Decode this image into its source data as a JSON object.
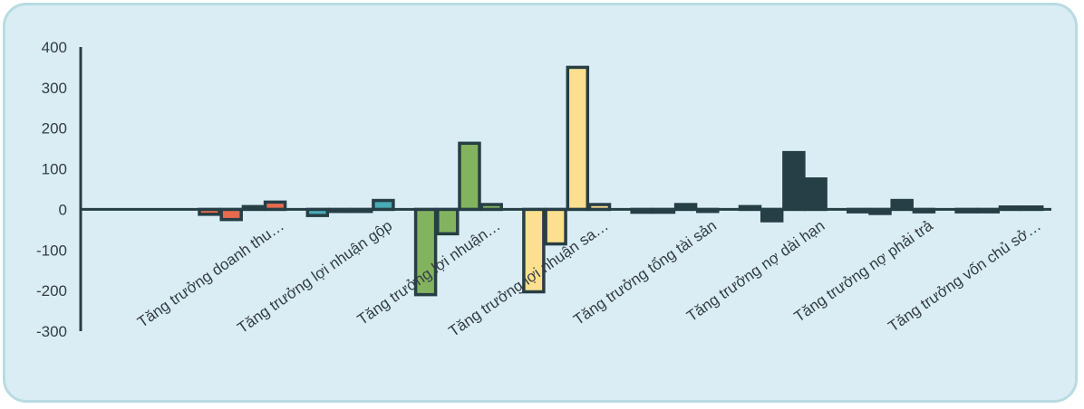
{
  "chart_data": {
    "type": "bar",
    "categories": [
      "Tăng trưởng  doanh thu…",
      "Tăng trưởng  lợi nhuận gộp",
      "Tăng trưởng lợi nhuận…",
      "Tăng trưởng lợi nhuận sa…",
      "Tăng trưởng tổng tài sản",
      "Tăng trưởng nợ dài hạn",
      "Tăng trưởng nợ phải trả",
      "Tăng trưởng vốn chủ sở…"
    ],
    "series_count": 4,
    "group_values": [
      [
        -12,
        -25,
        7,
        18
      ],
      [
        -15,
        -5,
        -5,
        22
      ],
      [
        -210,
        -60,
        163,
        12
      ],
      [
        -203,
        -85,
        350,
        12
      ],
      [
        -7,
        -7,
        12,
        -5
      ],
      [
        7,
        -28,
        140,
        75
      ],
      [
        -6,
        -10,
        22,
        -6
      ],
      [
        -6,
        -6,
        6,
        6
      ]
    ],
    "group_colors": [
      "#e86a4f",
      "#4aaab5",
      "#84b35f",
      "#fde08f",
      "#263e46",
      "#263e46",
      "#263e46",
      "#263e46"
    ],
    "outline_color": "#263e46",
    "ylim": [
      -300,
      400
    ],
    "yticks": [
      "400",
      "300",
      "200",
      "100",
      "0",
      "-100",
      "-200",
      "-300"
    ],
    "ytick_values": [
      400,
      300,
      200,
      100,
      0,
      -100,
      -200,
      -300
    ],
    "legend": "none",
    "grid": false
  }
}
